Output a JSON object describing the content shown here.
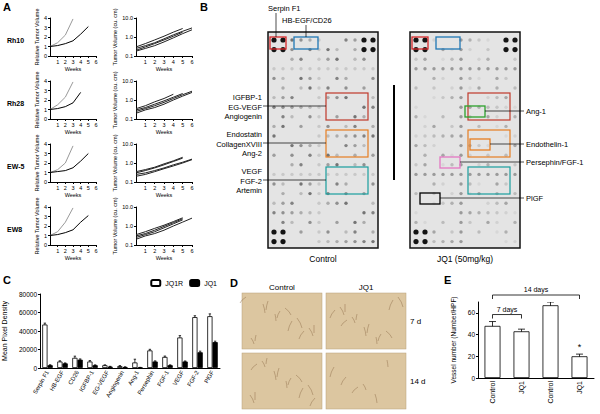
{
  "panel_labels": [
    "A",
    "B",
    "C",
    "D",
    "E"
  ],
  "chart_data": [
    {
      "type": "line",
      "title": "Rh10",
      "xlabel": "Weeks",
      "ylabel": "Relative Tumor Volume",
      "x": [
        0,
        1,
        2,
        3,
        4,
        5
      ],
      "xlim": [
        0,
        6
      ],
      "xticks": [
        1,
        2,
        3,
        4,
        5,
        6
      ],
      "ylim": [
        0,
        4
      ],
      "yticks": [
        0,
        1,
        2,
        3,
        4
      ],
      "series": [
        {
          "color": "#999999",
          "values": [
            1,
            1.4,
            2.2,
            3.9,
            null,
            null
          ]
        },
        {
          "color": "#000000",
          "values": [
            1,
            1.1,
            1.3,
            1.6,
            2.3,
            3.1
          ]
        }
      ]
    },
    {
      "type": "line",
      "log": "y",
      "xlabel": "Weeks",
      "ylabel": "Tumor Volume (cu. cm)",
      "x": [
        0,
        1,
        2,
        3,
        4,
        5,
        6
      ],
      "xlim": [
        0,
        6
      ],
      "xticks": [
        1,
        2,
        3,
        4,
        5,
        6
      ],
      "ylim": [
        0.1,
        10
      ],
      "yticks": [
        0.1,
        {
          "value": 1,
          "label": "1.0"
        },
        {
          "value": 10,
          "label": "10.0"
        }
      ],
      "series": [
        {
          "color": "#222222",
          "values": [
            0.25,
            0.35,
            0.5,
            0.8,
            1.3,
            2.0,
            3.0
          ]
        },
        {
          "color": "#222222",
          "values": [
            0.2,
            0.3,
            0.45,
            0.7,
            1.1,
            1.8,
            null
          ]
        },
        {
          "color": "#222222",
          "values": [
            0.3,
            0.45,
            0.7,
            1.1,
            1.8,
            2.8,
            null
          ]
        },
        {
          "color": "#222222",
          "values": [
            0.18,
            0.25,
            0.35,
            0.55,
            0.9,
            1.5,
            2.4
          ]
        }
      ]
    },
    {
      "type": "line",
      "title": "Rh28",
      "xlabel": "Weeks",
      "ylabel": "Relative Tumor Volume",
      "x": [
        0,
        1,
        2,
        3,
        4,
        5
      ],
      "xlim": [
        0,
        6
      ],
      "xticks": [
        1,
        2,
        3,
        4,
        5,
        6
      ],
      "ylim": [
        0,
        4
      ],
      "yticks": [
        0,
        1,
        2,
        3,
        4
      ],
      "series": [
        {
          "color": "#999999",
          "values": [
            1,
            1.5,
            2.3,
            3.9,
            null,
            null
          ]
        },
        {
          "color": "#000000",
          "values": [
            1,
            1.1,
            1.3,
            1.7,
            2.8,
            null
          ]
        }
      ]
    },
    {
      "type": "line",
      "log": "y",
      "xlabel": "Weeks",
      "ylabel": "Tumor Volume (cu. cm)",
      "x": [
        0,
        1,
        2,
        3,
        4,
        5,
        6
      ],
      "xlim": [
        0,
        6
      ],
      "xticks": [
        1,
        2,
        3,
        4,
        5,
        6
      ],
      "ylim": [
        0.1,
        10
      ],
      "yticks": [
        0.1,
        {
          "value": 1,
          "label": "1.0"
        },
        {
          "value": 10,
          "label": "10.0"
        }
      ],
      "series": [
        {
          "color": "#222222",
          "values": [
            0.3,
            0.4,
            0.6,
            0.9,
            1.4,
            2.2,
            null
          ]
        },
        {
          "color": "#222222",
          "values": [
            0.25,
            0.35,
            0.5,
            0.75,
            1.2,
            1.9,
            2.9
          ]
        },
        {
          "color": "#222222",
          "values": [
            0.35,
            0.5,
            0.8,
            1.2,
            2.0,
            null,
            null
          ]
        },
        {
          "color": "#222222",
          "values": [
            0.2,
            0.3,
            0.4,
            0.6,
            1.0,
            1.6,
            2.5
          ]
        }
      ]
    },
    {
      "type": "line",
      "title": "EW-5",
      "xlabel": "Weeks",
      "ylabel": "Relative Tumor Volume",
      "x": [
        0,
        1,
        2,
        3,
        4,
        5
      ],
      "xlim": [
        0,
        6
      ],
      "xticks": [
        1,
        2,
        3,
        4,
        5,
        6
      ],
      "ylim": [
        0,
        4
      ],
      "yticks": [
        0,
        1,
        2,
        3,
        4
      ],
      "series": [
        {
          "color": "#999999",
          "values": [
            1,
            1.3,
            2.0,
            3.8,
            null,
            null
          ]
        },
        {
          "color": "#000000",
          "values": [
            1,
            1.1,
            1.2,
            1.5,
            2.2,
            3.0
          ]
        }
      ]
    },
    {
      "type": "line",
      "log": "y",
      "xlabel": "Weeks",
      "ylabel": "Tumor Volume (cu. cm)",
      "x": [
        0,
        1,
        2,
        3,
        4,
        5,
        6
      ],
      "xlim": [
        0,
        6
      ],
      "xticks": [
        1,
        2,
        3,
        4,
        5,
        6
      ],
      "ylim": [
        0.1,
        10
      ],
      "yticks": [
        0.1,
        {
          "value": 1,
          "label": "1.0"
        },
        {
          "value": 10,
          "label": "10.0"
        }
      ],
      "series": [
        {
          "color": "#222222",
          "values": [
            0.25,
            0.3,
            0.4,
            0.55,
            0.8,
            1.1,
            1.6
          ]
        },
        {
          "color": "#222222",
          "values": [
            0.3,
            0.4,
            0.55,
            0.8,
            1.2,
            1.8,
            null
          ]
        },
        {
          "color": "#222222",
          "values": [
            0.2,
            0.25,
            0.35,
            0.5,
            0.7,
            1.0,
            1.5
          ]
        },
        {
          "color": "#222222",
          "values": [
            0.35,
            0.45,
            0.6,
            0.9,
            1.3,
            2.0,
            null
          ]
        }
      ]
    },
    {
      "type": "line",
      "title": "EW8",
      "xlabel": "Weeks",
      "ylabel": "Relative Tumor Volume",
      "x": [
        0,
        1,
        2,
        3,
        4,
        5
      ],
      "xlim": [
        0,
        6
      ],
      "xticks": [
        1,
        2,
        3,
        4,
        5,
        6
      ],
      "ylim": [
        0,
        4
      ],
      "yticks": [
        0,
        1,
        2,
        3,
        4
      ],
      "series": [
        {
          "color": "#999999",
          "values": [
            1,
            1.4,
            2.4,
            3.9,
            null,
            null
          ]
        },
        {
          "color": "#000000",
          "values": [
            1,
            1.1,
            1.3,
            1.6,
            2.4,
            3.1
          ]
        }
      ]
    },
    {
      "type": "line",
      "log": "y",
      "xlabel": "Weeks",
      "ylabel": "Tumor Volume (cu. cm)",
      "x": [
        0,
        1,
        2,
        3,
        4,
        5,
        6
      ],
      "xlim": [
        0,
        6
      ],
      "xticks": [
        1,
        2,
        3,
        4,
        5,
        6
      ],
      "ylim": [
        0.1,
        10
      ],
      "yticks": [
        0.1,
        {
          "value": 1,
          "label": "1.0"
        },
        {
          "value": 10,
          "label": "10.0"
        }
      ],
      "series": [
        {
          "color": "#222222",
          "values": [
            0.25,
            0.35,
            0.5,
            0.8,
            1.3,
            2.1,
            null
          ]
        },
        {
          "color": "#222222",
          "values": [
            0.3,
            0.4,
            0.6,
            0.95,
            1.5,
            2.4,
            null
          ]
        },
        {
          "color": "#222222",
          "values": [
            0.2,
            0.3,
            0.4,
            0.6,
            1.0,
            1.6,
            2.6
          ]
        },
        {
          "color": "#222222",
          "values": [
            0.35,
            0.5,
            0.75,
            1.1,
            1.7,
            2.7,
            null
          ]
        }
      ]
    },
    {
      "type": "bar",
      "ylabel": "Mean Pixel Density",
      "categories": [
        "Serpin F1",
        "HB-EGF",
        "CD26",
        "IGFBP-1",
        "EG-VEGF",
        "Angiogenin",
        "Ang-1",
        "Persephin",
        "FGF-1",
        "VEGF",
        "FGF-2",
        "PlGF"
      ],
      "series": [
        {
          "name": "JQ1R",
          "color": "#ffffff",
          "values": [
            47000,
            7000,
            11000,
            7000,
            3000,
            2000,
            6000,
            19000,
            12000,
            33000,
            55000,
            56000
          ],
          "errors": [
            1500,
            800,
            1800,
            1000,
            400,
            600,
            3500,
            1200,
            900,
            2000,
            1500,
            2500
          ]
        },
        {
          "name": "JQ1",
          "color": "#000000",
          "values": [
            3000,
            5000,
            9000,
            3000,
            1500,
            1000,
            500,
            7000,
            3000,
            7000,
            17000,
            28000
          ],
          "errors": [
            500,
            500,
            800,
            400,
            300,
            200,
            200,
            700,
            400,
            600,
            1200,
            1000
          ]
        }
      ],
      "ylim": [
        0,
        80000
      ],
      "yticks": [
        0,
        20000,
        40000,
        60000,
        80000
      ],
      "legend": "upper right"
    },
    {
      "type": "bar",
      "ylabel": "Vessel number (Number/HPF)",
      "categories": [
        "Control",
        "JQ1",
        "Control",
        "JQ1"
      ],
      "values": [
        48,
        43,
        67,
        20
      ],
      "errors": [
        4,
        2,
        3,
        2
      ],
      "color": "#ffffff",
      "ylim": [
        0,
        70
      ],
      "yticks": [
        0,
        20,
        40,
        60
      ],
      "annotations": [
        {
          "text": "7 days",
          "categories": [
            0,
            1
          ]
        },
        {
          "text": "14 days",
          "categories": [
            0,
            3
          ]
        },
        {
          "text": "*",
          "category": 3
        }
      ]
    }
  ],
  "blot": {
    "top_labels": [
      "Serpin F1",
      "HB-EGF/CD26"
    ],
    "left_labels": [
      [
        "IGFBP-1",
        "EG-VEGF",
        "Angiogenin"
      ],
      [
        "Endostatin",
        "CollagenXVIII",
        "Ang-2"
      ],
      [
        "VEGF",
        "FGF-2",
        "Artemin"
      ]
    ],
    "right_labels": [
      "Ang-1",
      "Endothelin-1",
      "Persephin/FGF-1",
      "PlGF"
    ],
    "conditions": [
      "Control",
      "JQ1 (50mg/kg)"
    ]
  },
  "micrographs": {
    "columns": [
      "Control",
      "JQ1"
    ],
    "rows": [
      "7 d",
      "14 d"
    ]
  }
}
